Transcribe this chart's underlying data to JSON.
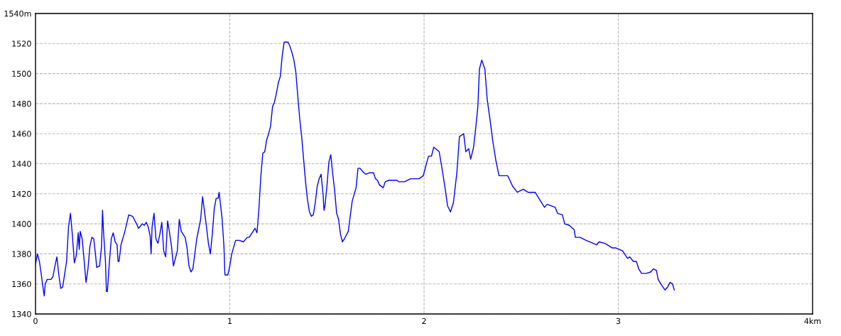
{
  "chart_data": {
    "type": "line",
    "xlim": [
      0,
      4
    ],
    "ylim": [
      1340,
      1540
    ],
    "xticks": [
      0,
      1,
      2,
      3,
      {
        "value": 4,
        "label": "4km"
      }
    ],
    "yticks": [
      1340,
      1360,
      1380,
      1400,
      1420,
      1440,
      1460,
      1480,
      1500,
      1520,
      {
        "value": 1540,
        "label": "1540m"
      }
    ],
    "grid": true,
    "series": [
      {
        "color": "#0000ff",
        "x": [
          0.0,
          0.01,
          0.02,
          0.03,
          0.04,
          0.045,
          0.05,
          0.06,
          0.08,
          0.09,
          0.1,
          0.11,
          0.12,
          0.13,
          0.14,
          0.16,
          0.17,
          0.18,
          0.19,
          0.2,
          0.21,
          0.22,
          0.225,
          0.23,
          0.24,
          0.25,
          0.26,
          0.27,
          0.28,
          0.29,
          0.3,
          0.31,
          0.315,
          0.33,
          0.34,
          0.345,
          0.35,
          0.36,
          0.365,
          0.37,
          0.38,
          0.39,
          0.4,
          0.41,
          0.42,
          0.425,
          0.43,
          0.44,
          0.46,
          0.48,
          0.5,
          0.52,
          0.53,
          0.55,
          0.56,
          0.57,
          0.58,
          0.59,
          0.595,
          0.6,
          0.61,
          0.62,
          0.63,
          0.64,
          0.65,
          0.66,
          0.67,
          0.675,
          0.68,
          0.69,
          0.7,
          0.71,
          0.72,
          0.73,
          0.74,
          0.75,
          0.77,
          0.78,
          0.79,
          0.8,
          0.81,
          0.83,
          0.85,
          0.86,
          0.87,
          0.88,
          0.89,
          0.9,
          0.91,
          0.92,
          0.93,
          0.94,
          0.945,
          0.96,
          0.97,
          0.975,
          0.99,
          1.0,
          1.01,
          1.03,
          1.05,
          1.07,
          1.09,
          1.1,
          1.12,
          1.13,
          1.14,
          1.15,
          1.16,
          1.17,
          1.18,
          1.19,
          1.2,
          1.21,
          1.22,
          1.23,
          1.24,
          1.25,
          1.26,
          1.27,
          1.28,
          1.3,
          1.31,
          1.32,
          1.33,
          1.34,
          1.35,
          1.36,
          1.37,
          1.38,
          1.39,
          1.4,
          1.41,
          1.42,
          1.43,
          1.44,
          1.45,
          1.46,
          1.47,
          1.48,
          1.485,
          1.49,
          1.5,
          1.51,
          1.52,
          1.53,
          1.54,
          1.55,
          1.56,
          1.57,
          1.58,
          1.59,
          1.61,
          1.62,
          1.63,
          1.65,
          1.66,
          1.67,
          1.69,
          1.7,
          1.72,
          1.74,
          1.75,
          1.76,
          1.77,
          1.79,
          1.8,
          1.82,
          1.86,
          1.87,
          1.9,
          1.93,
          1.974,
          1.996,
          2.008,
          2.023,
          2.038,
          2.05,
          2.078,
          2.096,
          2.109,
          2.121,
          2.136,
          2.151,
          2.169,
          2.182,
          2.204,
          2.215,
          2.23,
          2.24,
          2.255,
          2.267,
          2.277,
          2.285,
          2.297,
          2.313,
          2.325,
          2.34,
          2.355,
          2.37,
          2.386,
          2.431,
          2.456,
          2.48,
          2.511,
          2.535,
          2.572,
          2.596,
          2.62,
          2.633,
          2.675,
          2.687,
          2.712,
          2.724,
          2.748,
          2.773,
          2.779,
          2.803,
          2.834,
          2.852,
          2.888,
          2.901,
          2.931,
          2.968,
          2.986,
          3.022,
          3.047,
          3.059,
          3.077,
          3.093,
          3.105,
          3.12,
          3.144,
          3.167,
          3.181,
          3.196,
          3.205,
          3.224,
          3.24,
          3.254,
          3.266,
          3.279,
          3.288
        ],
        "values": [
          1373,
          1380,
          1375,
          1366,
          1356,
          1352,
          1360,
          1363,
          1363,
          1365,
          1372,
          1378,
          1366,
          1357,
          1358,
          1375,
          1398,
          1407,
          1392,
          1374,
          1379,
          1394,
          1383,
          1395,
          1390,
          1376,
          1361,
          1370,
          1385,
          1391,
          1390,
          1378,
          1371,
          1372,
          1385,
          1409,
          1395,
          1375,
          1355,
          1355,
          1374,
          1390,
          1394,
          1388,
          1386,
          1375,
          1375,
          1386,
          1395,
          1406,
          1405,
          1400,
          1397,
          1400,
          1399,
          1401,
          1398,
          1392,
          1380,
          1398,
          1407,
          1390,
          1387,
          1393,
          1401,
          1382,
          1378,
          1390,
          1402,
          1394,
          1385,
          1372,
          1377,
          1382,
          1403,
          1395,
          1391,
          1384,
          1372,
          1368,
          1370,
          1390,
          1403,
          1418,
          1408,
          1398,
          1387,
          1380,
          1393,
          1410,
          1417,
          1417,
          1421,
          1404,
          1385,
          1366,
          1366,
          1372,
          1380,
          1389,
          1389,
          1388,
          1391,
          1391,
          1395,
          1397,
          1394,
          1410,
          1432,
          1447,
          1448,
          1456,
          1460,
          1465,
          1478,
          1481,
          1487,
          1494,
          1498,
          1512,
          1521,
          1521,
          1518,
          1514,
          1509,
          1501,
          1485,
          1470,
          1458,
          1443,
          1428,
          1416,
          1408,
          1405,
          1406,
          1414,
          1425,
          1430,
          1433,
          1420,
          1409,
          1412,
          1425,
          1441,
          1446,
          1433,
          1422,
          1407,
          1403,
          1393,
          1388,
          1390,
          1395,
          1405,
          1415,
          1424,
          1437,
          1437,
          1434,
          1433,
          1434,
          1434,
          1430,
          1429,
          1426,
          1424,
          1428,
          1429,
          1429,
          1428,
          1428,
          1430,
          1430,
          1432,
          1438,
          1445,
          1445,
          1451,
          1448,
          1434,
          1423,
          1412,
          1408,
          1414,
          1434,
          1458,
          1460,
          1448,
          1450,
          1443,
          1451,
          1465,
          1478,
          1503,
          1509,
          1503,
          1483,
          1469,
          1454,
          1442,
          1432,
          1432,
          1425,
          1421,
          1423,
          1421,
          1421,
          1416,
          1411,
          1413,
          1411,
          1407,
          1406,
          1400,
          1399,
          1396,
          1391,
          1391,
          1389,
          1388,
          1386,
          1388,
          1387,
          1384,
          1384,
          1382,
          1377,
          1378,
          1375,
          1375,
          1370,
          1367,
          1367,
          1368,
          1370,
          1369,
          1363,
          1359,
          1356,
          1358,
          1361,
          1360,
          1356
        ]
      }
    ]
  }
}
